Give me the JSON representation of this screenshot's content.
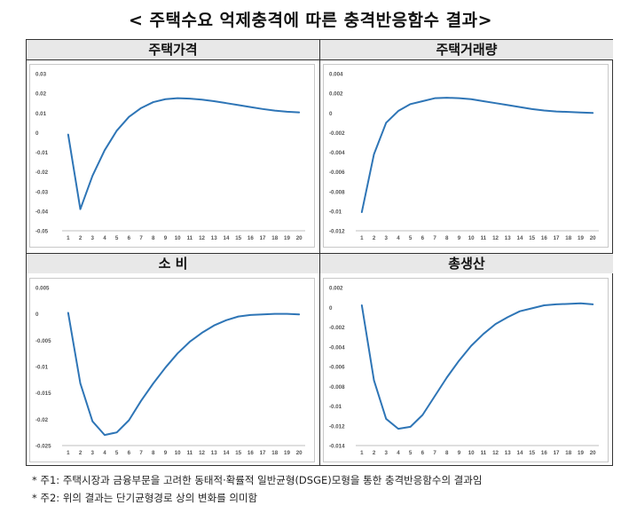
{
  "title": "< 주택수요 억제충격에 따른 충격반응함수 결과>",
  "colors": {
    "line": "#2e75b6",
    "grid_border": "#333333",
    "header_bg": "#e8e8e8"
  },
  "chart_data": [
    {
      "type": "line",
      "title": "주택가격",
      "categories": [
        "1",
        "2",
        "3",
        "4",
        "5",
        "6",
        "7",
        "8",
        "9",
        "10",
        "11",
        "12",
        "13",
        "14",
        "15",
        "16",
        "17",
        "18",
        "19",
        "20"
      ],
      "ylim": [
        -0.05,
        0.03
      ],
      "yticks": [
        0.03,
        0.02,
        0.01,
        0,
        -0.01,
        -0.02,
        -0.03,
        -0.04,
        -0.05
      ],
      "ytick_labels": [
        "0.03",
        "0.02",
        "0.01",
        "0",
        "-0.01",
        "-0.02",
        "-0.03",
        "-0.04",
        "-0.05"
      ],
      "grid": false,
      "series": [
        {
          "values": [
            -0.001,
            -0.039,
            -0.022,
            -0.009,
            0.001,
            0.008,
            0.0125,
            0.0155,
            0.017,
            0.0175,
            0.0173,
            0.0168,
            0.016,
            0.015,
            0.014,
            0.013,
            0.012,
            0.0112,
            0.0106,
            0.0103
          ]
        }
      ]
    },
    {
      "type": "line",
      "title": "주택거래량",
      "categories": [
        "1",
        "2",
        "3",
        "4",
        "5",
        "6",
        "7",
        "8",
        "9",
        "10",
        "11",
        "12",
        "13",
        "14",
        "15",
        "16",
        "17",
        "18",
        "19",
        "20"
      ],
      "ylim": [
        -0.012,
        0.004
      ],
      "yticks": [
        0.004,
        0.002,
        0,
        -0.002,
        -0.004,
        -0.006,
        -0.008,
        -0.01,
        -0.012
      ],
      "ytick_labels": [
        "0.004",
        "0.002",
        "0",
        "-0.002",
        "-0.004",
        "-0.006",
        "-0.008",
        "-0.01",
        "-0.012"
      ],
      "grid": false,
      "series": [
        {
          "values": [
            -0.0101,
            -0.0042,
            -0.001,
            0.0002,
            0.0009,
            0.0012,
            0.0015,
            0.00155,
            0.0015,
            0.0014,
            0.0012,
            0.001,
            0.0008,
            0.0006,
            0.0004,
            0.00025,
            0.00015,
            0.0001,
            5e-05,
            0.0
          ]
        }
      ]
    },
    {
      "type": "line",
      "title": "소 비",
      "categories": [
        "1",
        "2",
        "3",
        "4",
        "5",
        "6",
        "7",
        "8",
        "9",
        "10",
        "11",
        "12",
        "13",
        "14",
        "15",
        "16",
        "17",
        "18",
        "19",
        "20"
      ],
      "ylim": [
        -0.025,
        0.005
      ],
      "yticks": [
        0.005,
        0,
        -0.005,
        -0.01,
        -0.015,
        -0.02,
        -0.025
      ],
      "ytick_labels": [
        "0.005",
        "0",
        "-0.005",
        "-0.01",
        "-0.015",
        "-0.02",
        "-0.025"
      ],
      "grid": false,
      "series": [
        {
          "values": [
            0.0002,
            -0.0132,
            -0.0204,
            -0.023,
            -0.0225,
            -0.0202,
            -0.0165,
            -0.0132,
            -0.0102,
            -0.0075,
            -0.0053,
            -0.0036,
            -0.0022,
            -0.0012,
            -0.0005,
            -0.0002,
            -0.0001,
            0.0,
            0.0,
            -0.0001
          ]
        }
      ]
    },
    {
      "type": "line",
      "title": "총생산",
      "categories": [
        "1",
        "2",
        "3",
        "4",
        "5",
        "6",
        "7",
        "8",
        "9",
        "10",
        "11",
        "12",
        "13",
        "14",
        "15",
        "16",
        "17",
        "18",
        "19",
        "20"
      ],
      "ylim": [
        -0.014,
        0.002
      ],
      "yticks": [
        0.002,
        0,
        -0.002,
        -0.004,
        -0.006,
        -0.008,
        -0.01,
        -0.012,
        -0.014
      ],
      "ytick_labels": [
        "0.002",
        "0",
        "-0.002",
        "-0.004",
        "-0.006",
        "-0.008",
        "-0.01",
        "-0.012",
        "-0.014"
      ],
      "grid": false,
      "series": [
        {
          "values": [
            0.0002,
            -0.0074,
            -0.0113,
            -0.0123,
            -0.0121,
            -0.0109,
            -0.009,
            -0.0071,
            -0.0054,
            -0.0039,
            -0.0027,
            -0.0017,
            -0.001,
            -0.0004,
            -0.0001,
            0.0002,
            0.0003,
            0.00035,
            0.0004,
            0.0003
          ]
        }
      ]
    }
  ],
  "notes": [
    "* 주1: 주택시장과 금융부문을 고려한 동태적·확률적 일반균형(DSGE)모형을 통한 충격반응함수의 결과임",
    "* 주2: 위의 결과는 단기균형경로 상의 변화를 의미함"
  ]
}
